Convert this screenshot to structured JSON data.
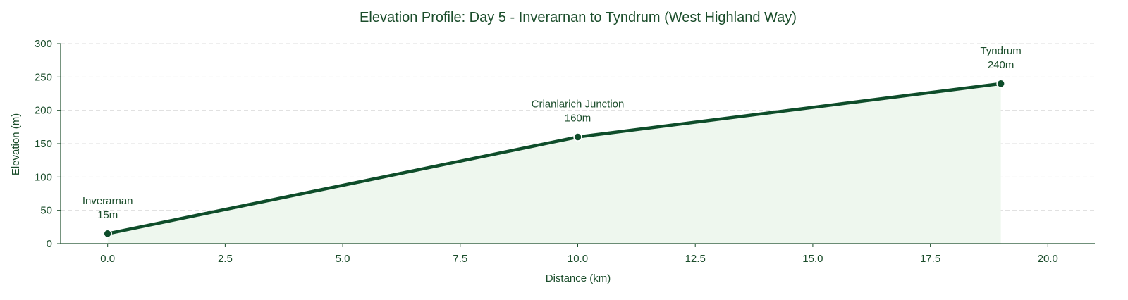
{
  "chart_data": {
    "type": "area",
    "title": "Elevation Profile: Day 5 - Inverarnan to Tyndrum (West Highland Way)",
    "xlabel": "Distance (km)",
    "ylabel": "Elevation (m)",
    "xlim": [
      -1.0,
      21.0
    ],
    "ylim": [
      0,
      300
    ],
    "x_ticks": [
      0.0,
      2.5,
      5.0,
      7.5,
      10.0,
      12.5,
      15.0,
      17.5,
      20.0
    ],
    "x_tick_labels": [
      "0.0",
      "2.5",
      "5.0",
      "7.5",
      "10.0",
      "12.5",
      "15.0",
      "17.5",
      "20.0"
    ],
    "y_ticks": [
      0,
      50,
      100,
      150,
      200,
      250,
      300
    ],
    "y_tick_labels": [
      "0",
      "50",
      "100",
      "150",
      "200",
      "250",
      "300"
    ],
    "grid": "y-dashed",
    "series": [
      {
        "points": [
          {
            "x": 0,
            "y": 15,
            "label": "Inverarnan",
            "value_label": "15m"
          },
          {
            "x": 10,
            "y": 160,
            "label": "Crianlarich Junction",
            "value_label": "160m"
          },
          {
            "x": 19,
            "y": 240,
            "label": "Tyndrum",
            "value_label": "240m"
          }
        ]
      }
    ],
    "colors": {
      "line": "#0e4d2a",
      "fill": "#eef7ee",
      "axis": "#1b4d2b",
      "grid": "#dddddd"
    }
  }
}
